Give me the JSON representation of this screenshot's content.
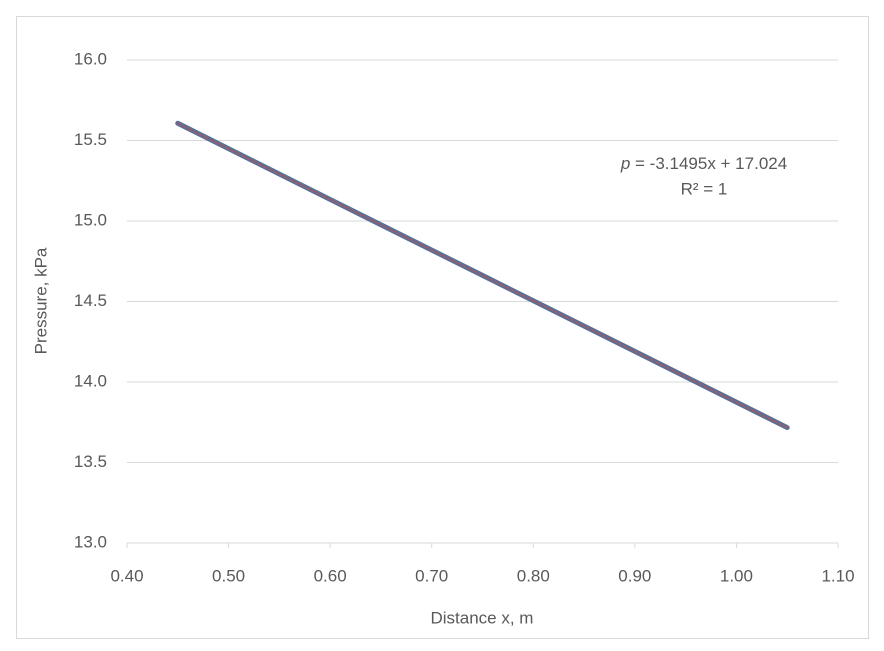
{
  "chart_data": {
    "type": "line",
    "x_label": "Distance x, m",
    "y_label": "Pressure, kPa",
    "equation_variable": "p",
    "equation": " = -3.1495x + 17.024",
    "r_squared": "R² = 1",
    "x": [
      0.45,
      0.6,
      0.75,
      0.9,
      1.05
    ],
    "series": [
      {
        "name": "Pressure",
        "color": "#5b6f94",
        "values": [
          15.607,
          15.134,
          14.662,
          14.19,
          13.717
        ]
      }
    ],
    "trendline_color": "#c0504d",
    "xlim": [
      0.4,
      1.1
    ],
    "xticks": [
      {
        "value": 0.4,
        "label": "0.40"
      },
      {
        "value": 0.5,
        "label": "0.50"
      },
      {
        "value": 0.6,
        "label": "0.60"
      },
      {
        "value": 0.7,
        "label": "0.70"
      },
      {
        "value": 0.8,
        "label": "0.80"
      },
      {
        "value": 0.9,
        "label": "0.90"
      },
      {
        "value": 1.0,
        "label": "1.00"
      },
      {
        "value": 1.1,
        "label": "1.10"
      }
    ],
    "ylim": [
      13,
      16
    ],
    "yticks": [
      {
        "value": 13,
        "label": "13.0"
      },
      {
        "value": 13.5,
        "label": "13.5"
      },
      {
        "value": 14,
        "label": "14.0"
      },
      {
        "value": 14.5,
        "label": "14.5"
      },
      {
        "value": 15,
        "label": "15.0"
      },
      {
        "value": 15.5,
        "label": "15.5"
      },
      {
        "value": 16,
        "label": "16.0"
      }
    ],
    "grid": true
  }
}
